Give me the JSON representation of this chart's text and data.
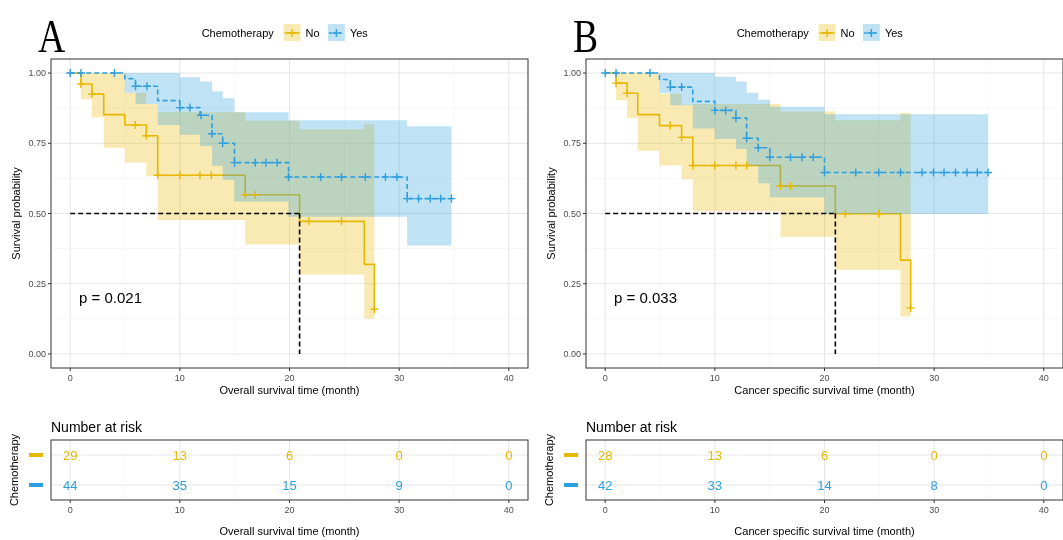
{
  "chart_data": [
    {
      "type": "step",
      "title": "A",
      "xlabel": "Overall survival time (month)",
      "ylabel": "Survival probability",
      "legend_title": "Chemotherapy",
      "legend": "top",
      "xlim": [
        -1.75,
        41.75
      ],
      "xticks": [
        0,
        10,
        20,
        30,
        40
      ],
      "ylim": [
        -0.05,
        1.05
      ],
      "yticks": [
        {
          "value": 0,
          "label": "0.00"
        },
        {
          "value": 0.25,
          "label": "0.25"
        },
        {
          "value": 0.5,
          "label": "0.50"
        },
        {
          "value": 0.75,
          "label": "0.75"
        },
        {
          "value": 1,
          "label": "1.00"
        }
      ],
      "grid": true,
      "annotations": [
        "p = 0.021"
      ],
      "series": [
        {
          "name": "No",
          "color": "#e7b800",
          "line_style": "solid",
          "x": [
            0,
            0.98,
            1.99,
            3.06,
            4.98,
            6.94,
            7.98,
            15.96,
            20.92,
            26.82,
            27.74
          ],
          "values": [
            1,
            0.961,
            0.925,
            0.852,
            0.815,
            0.777,
            0.636,
            0.567,
            0.472,
            0.319,
            0.159
          ],
          "lower": [
            1,
            0.907,
            0.843,
            0.734,
            0.682,
            0.633,
            0.477,
            0.39,
            0.283,
            0.125,
            0.125
          ],
          "upper": [
            1,
            1,
            1,
            1,
            0.93,
            0.89,
            0.86,
            0.83,
            0.8,
            0.818,
            0.818
          ]
        },
        {
          "name": "Yes",
          "color": "#2e9fdf",
          "line_style": "dashed",
          "x": [
            0,
            4.98,
            5.96,
            7.98,
            10,
            11.83,
            12.94,
            13.91,
            14.98,
            19.91,
            30.73,
            34.77
          ],
          "values": [
            1,
            0.98,
            0.953,
            0.902,
            0.877,
            0.85,
            0.784,
            0.75,
            0.681,
            0.63,
            0.553,
            0.553
          ],
          "lower": [
            1,
            0.93,
            0.89,
            0.815,
            0.78,
            0.74,
            0.67,
            0.62,
            0.543,
            0.488,
            0.386,
            0.386
          ],
          "upper": [
            1,
            1,
            1,
            1,
            0.985,
            0.97,
            0.935,
            0.91,
            0.86,
            0.832,
            0.811,
            0.811
          ]
        },
        {
          "type": "scatter",
          "color": "#e7b800",
          "marker": "cross",
          "x": [
            0.98,
            1.99,
            5.93,
            6.94,
            7.98,
            10,
            11.83,
            12.87,
            15.96,
            16.88,
            21.77,
            24.74,
            27.74
          ],
          "values": [
            0.961,
            0.925,
            0.815,
            0.777,
            0.636,
            0.636,
            0.636,
            0.636,
            0.567,
            0.567,
            0.472,
            0.472,
            0.159
          ]
        },
        {
          "type": "scatter",
          "color": "#2e9fdf",
          "marker": "cross",
          "x": [
            0,
            0.98,
            4.04,
            5.96,
            7.0,
            10,
            10.92,
            11.93,
            12.94,
            13.91,
            14.98,
            16.88,
            17.86,
            18.87,
            19.91,
            22.84,
            24.74,
            26.91,
            28.75,
            29.79,
            30.73,
            31.77,
            32.84,
            33.79,
            34.77
          ],
          "values": [
            1,
            1,
            1,
            0.953,
            0.953,
            0.877,
            0.877,
            0.85,
            0.784,
            0.75,
            0.681,
            0.681,
            0.681,
            0.681,
            0.63,
            0.63,
            0.63,
            0.63,
            0.63,
            0.63,
            0.553,
            0.553,
            0.553,
            0.553,
            0.553
          ]
        },
        {
          "type": "line",
          "color": "#000000",
          "line_style": "dashed",
          "x": [
            0,
            20.92
          ],
          "values": [
            0.5,
            0.5
          ]
        },
        {
          "type": "line",
          "color": "#000000",
          "line_style": "dashed",
          "x": [
            20.92,
            20.92
          ],
          "values": [
            0.5,
            0
          ]
        }
      ]
    },
    {
      "type": "heatmap",
      "title": "Number at risk",
      "ylabel": "Chemotherapy",
      "xlabel": "Overall survival time (month)",
      "categories": [
        "0",
        "10",
        "20",
        "30",
        "40"
      ],
      "y_categories": [
        null,
        null
      ],
      "colors": [
        "#e7b800",
        "#2e9fdf"
      ],
      "grid": true,
      "data_labels": true,
      "cells": [
        [
          29,
          13,
          6,
          0,
          0
        ],
        [
          44,
          35,
          15,
          9,
          0
        ]
      ]
    },
    {
      "type": "step",
      "title": "B",
      "xlabel": "Cancer specific survival time (month)",
      "ylabel": "Survival probability",
      "legend_title": "Chemotherapy",
      "legend": "top",
      "xlim": [
        -1.75,
        41.75
      ],
      "xticks": [
        0,
        10,
        20,
        30,
        40
      ],
      "ylim": [
        -0.05,
        1.05
      ],
      "yticks": [
        {
          "value": 0,
          "label": "0.00"
        },
        {
          "value": 0.25,
          "label": "0.25"
        },
        {
          "value": 0.5,
          "label": "0.50"
        },
        {
          "value": 0.75,
          "label": "0.75"
        },
        {
          "value": 1,
          "label": "1.00"
        }
      ],
      "grid": true,
      "annotations": [
        "p = 0.033"
      ],
      "series": [
        {
          "name": "No",
          "color": "#e7b800",
          "line_style": "solid",
          "x": [
            0,
            0.99,
            2.0,
            2.97,
            4.95,
            6.97,
            7.99,
            15.98,
            20.99,
            26.93,
            27.86
          ],
          "values": [
            1,
            0.964,
            0.928,
            0.852,
            0.813,
            0.771,
            0.671,
            0.598,
            0.499,
            0.334,
            0.164
          ],
          "lower": [
            1,
            0.903,
            0.84,
            0.723,
            0.671,
            0.622,
            0.508,
            0.417,
            0.3,
            0.133,
            0.133
          ],
          "upper": [
            1,
            1,
            1,
            1,
            0.925,
            0.887,
            0.89,
            0.863,
            0.832,
            0.858,
            0.858
          ]
        },
        {
          "name": "Yes",
          "color": "#2e9fdf",
          "line_style": "dashed",
          "x": [
            0,
            4.95,
            5.94,
            7.99,
            10,
            11.92,
            12.9,
            13.96,
            15.02,
            20.0,
            34.92
          ],
          "values": [
            1,
            0.977,
            0.95,
            0.899,
            0.867,
            0.84,
            0.768,
            0.734,
            0.7,
            0.646,
            0.646
          ],
          "lower": [
            1,
            0.928,
            0.885,
            0.803,
            0.765,
            0.73,
            0.67,
            0.608,
            0.558,
            0.498,
            0.498
          ],
          "upper": [
            1,
            1,
            1,
            1,
            0.987,
            0.97,
            0.93,
            0.905,
            0.88,
            0.853,
            0.853
          ]
        },
        {
          "type": "scatter",
          "color": "#e7b800",
          "marker": "cross",
          "x": [
            0.99,
            2.0,
            5.94,
            6.97,
            7.99,
            10,
            11.92,
            12.9,
            15.98,
            16.9,
            21.9,
            24.95,
            27.86
          ],
          "values": [
            0.964,
            0.928,
            0.813,
            0.771,
            0.671,
            0.671,
            0.671,
            0.671,
            0.598,
            0.598,
            0.499,
            0.499,
            0.164
          ]
        },
        {
          "type": "scatter",
          "color": "#2e9fdf",
          "marker": "cross",
          "x": [
            0,
            0.99,
            4.09,
            5.94,
            6.97,
            10,
            10.99,
            11.92,
            12.9,
            13.96,
            15.02,
            16.9,
            17.95,
            18.97,
            20.0,
            22.85,
            24.95,
            26.93,
            28.89,
            29.94,
            30.9,
            31.95,
            33.0,
            33.93,
            34.92
          ],
          "values": [
            1,
            1,
            1,
            0.95,
            0.95,
            0.867,
            0.867,
            0.84,
            0.768,
            0.734,
            0.7,
            0.7,
            0.7,
            0.7,
            0.646,
            0.646,
            0.646,
            0.646,
            0.646,
            0.646,
            0.646,
            0.646,
            0.646,
            0.646,
            0.646
          ]
        },
        {
          "type": "line",
          "color": "#000000",
          "line_style": "dashed",
          "x": [
            0,
            20.99
          ],
          "values": [
            0.5,
            0.5
          ]
        },
        {
          "type": "line",
          "color": "#000000",
          "line_style": "dashed",
          "x": [
            20.99,
            20.99
          ],
          "values": [
            0.5,
            0
          ]
        }
      ]
    },
    {
      "type": "heatmap",
      "title": "Number at risk",
      "ylabel": "Chemotherapy",
      "xlabel": "Cancer specific survival time (month)",
      "categories": [
        "0",
        "10",
        "20",
        "30",
        "40"
      ],
      "y_categories": [
        null,
        null
      ],
      "colors": [
        "#e7b800",
        "#2e9fdf"
      ],
      "grid": true,
      "data_labels": true,
      "cells": [
        [
          28,
          13,
          6,
          0,
          0
        ],
        [
          42,
          33,
          14,
          8,
          0
        ]
      ]
    }
  ]
}
